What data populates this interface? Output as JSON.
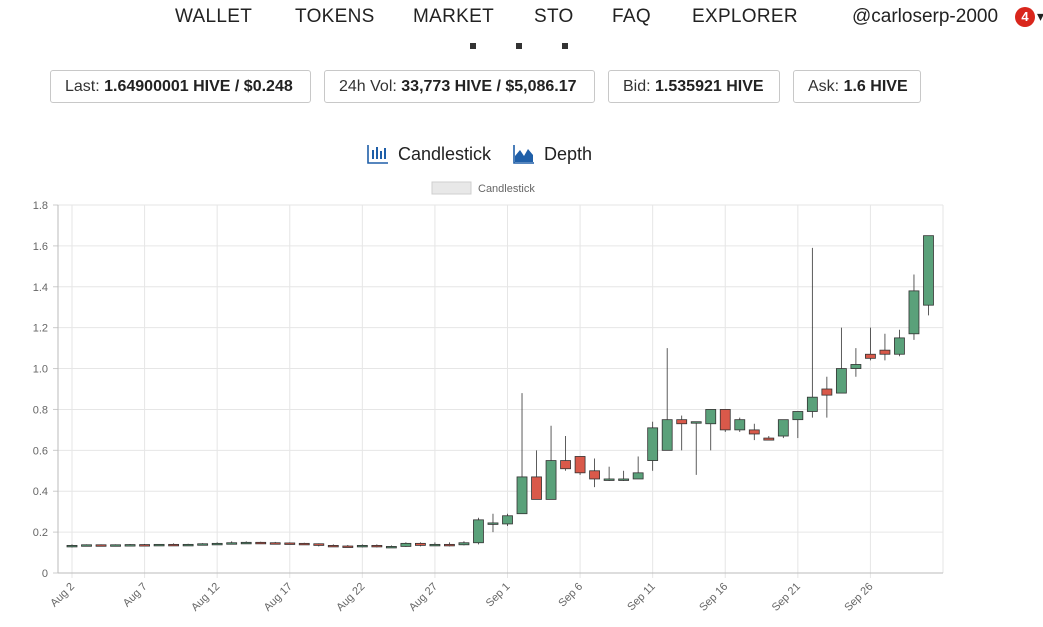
{
  "nav": {
    "items": [
      "WALLET",
      "TOKENS",
      "MARKET",
      "STO",
      "FAQ",
      "EXPLORER"
    ],
    "user": "@carloserp-2000",
    "notifications": "4"
  },
  "stats": {
    "last_label": "Last:",
    "last_value": "1.64900001 HIVE / $0.248",
    "vol_label": "24h Vol:",
    "vol_value": "33,773 HIVE / $5,086.17",
    "bid_label": "Bid:",
    "bid_value": "1.535921 HIVE",
    "ask_label": "Ask:",
    "ask_value": "1.6 HIVE"
  },
  "toggles": {
    "candlestick": "Candlestick",
    "depth": "Depth"
  },
  "colors": {
    "up": "#5aa17a",
    "down": "#d9594a",
    "grid": "#e6e6e6",
    "accent": "#1f5fa8"
  },
  "chart_data": {
    "type": "candlestick",
    "legend": "Candlestick",
    "legend_position": "top-center",
    "grid": true,
    "ylim": [
      0,
      1.8
    ],
    "yticks": [
      "0",
      "0.2",
      "0.4",
      "0.6",
      "0.8",
      "1.0",
      "1.2",
      "1.4",
      "1.6",
      "1.8"
    ],
    "xtick_labels": [
      "Aug 2",
      "Aug 7",
      "Aug 12",
      "Aug 17",
      "Aug 22",
      "Aug 27",
      "Sep 1",
      "Sep 6",
      "Sep 11",
      "Sep 16",
      "Sep 21",
      "Sep 26"
    ],
    "candles": [
      {
        "x": "Aug 2",
        "o": 0.13,
        "h": 0.14,
        "l": 0.125,
        "c": 0.135
      },
      {
        "x": "Aug 3",
        "o": 0.135,
        "h": 0.14,
        "l": 0.13,
        "c": 0.138
      },
      {
        "x": "Aug 4",
        "o": 0.138,
        "h": 0.14,
        "l": 0.133,
        "c": 0.136
      },
      {
        "x": "Aug 5",
        "o": 0.136,
        "h": 0.14,
        "l": 0.134,
        "c": 0.138
      },
      {
        "x": "Aug 6",
        "o": 0.138,
        "h": 0.142,
        "l": 0.135,
        "c": 0.139
      },
      {
        "x": "Aug 7",
        "o": 0.139,
        "h": 0.142,
        "l": 0.136,
        "c": 0.137
      },
      {
        "x": "Aug 8",
        "o": 0.137,
        "h": 0.142,
        "l": 0.135,
        "c": 0.14
      },
      {
        "x": "Aug 9",
        "o": 0.14,
        "h": 0.145,
        "l": 0.136,
        "c": 0.138
      },
      {
        "x": "Aug 10",
        "o": 0.138,
        "h": 0.143,
        "l": 0.135,
        "c": 0.14
      },
      {
        "x": "Aug 11",
        "o": 0.14,
        "h": 0.146,
        "l": 0.137,
        "c": 0.143
      },
      {
        "x": "Aug 12",
        "o": 0.143,
        "h": 0.15,
        "l": 0.14,
        "c": 0.145
      },
      {
        "x": "Aug 13",
        "o": 0.145,
        "h": 0.155,
        "l": 0.14,
        "c": 0.148
      },
      {
        "x": "Aug 14",
        "o": 0.148,
        "h": 0.155,
        "l": 0.144,
        "c": 0.15
      },
      {
        "x": "Aug 15",
        "o": 0.15,
        "h": 0.153,
        "l": 0.145,
        "c": 0.148
      },
      {
        "x": "Aug 16",
        "o": 0.148,
        "h": 0.152,
        "l": 0.145,
        "c": 0.147
      },
      {
        "x": "Aug 17",
        "o": 0.147,
        "h": 0.15,
        "l": 0.143,
        "c": 0.145
      },
      {
        "x": "Aug 18",
        "o": 0.145,
        "h": 0.148,
        "l": 0.14,
        "c": 0.143
      },
      {
        "x": "Aug 19",
        "o": 0.143,
        "h": 0.145,
        "l": 0.13,
        "c": 0.135
      },
      {
        "x": "Aug 20",
        "o": 0.135,
        "h": 0.14,
        "l": 0.128,
        "c": 0.132
      },
      {
        "x": "Aug 21",
        "o": 0.132,
        "h": 0.137,
        "l": 0.127,
        "c": 0.13
      },
      {
        "x": "Aug 22",
        "o": 0.13,
        "h": 0.14,
        "l": 0.125,
        "c": 0.135
      },
      {
        "x": "Aug 23",
        "o": 0.135,
        "h": 0.14,
        "l": 0.125,
        "c": 0.128
      },
      {
        "x": "Aug 24",
        "o": 0.128,
        "h": 0.135,
        "l": 0.124,
        "c": 0.13
      },
      {
        "x": "Aug 25",
        "o": 0.13,
        "h": 0.15,
        "l": 0.128,
        "c": 0.145
      },
      {
        "x": "Aug 26",
        "o": 0.145,
        "h": 0.15,
        "l": 0.13,
        "c": 0.135
      },
      {
        "x": "Aug 27",
        "o": 0.135,
        "h": 0.15,
        "l": 0.133,
        "c": 0.14
      },
      {
        "x": "Aug 28",
        "o": 0.14,
        "h": 0.15,
        "l": 0.13,
        "c": 0.138
      },
      {
        "x": "Aug 29",
        "o": 0.138,
        "h": 0.155,
        "l": 0.135,
        "c": 0.148
      },
      {
        "x": "Aug 30",
        "o": 0.148,
        "h": 0.27,
        "l": 0.14,
        "c": 0.26
      },
      {
        "x": "Aug 31",
        "o": 0.24,
        "h": 0.29,
        "l": 0.2,
        "c": 0.245
      },
      {
        "x": "Sep 1",
        "o": 0.24,
        "h": 0.29,
        "l": 0.23,
        "c": 0.28
      },
      {
        "x": "Sep 2",
        "o": 0.29,
        "h": 0.88,
        "l": 0.29,
        "c": 0.47
      },
      {
        "x": "Sep 3",
        "o": 0.47,
        "h": 0.6,
        "l": 0.36,
        "c": 0.36
      },
      {
        "x": "Sep 4",
        "o": 0.36,
        "h": 0.72,
        "l": 0.36,
        "c": 0.55
      },
      {
        "x": "Sep 5",
        "o": 0.55,
        "h": 0.67,
        "l": 0.5,
        "c": 0.51
      },
      {
        "x": "Sep 6",
        "o": 0.57,
        "h": 0.57,
        "l": 0.48,
        "c": 0.49
      },
      {
        "x": "Sep 7",
        "o": 0.5,
        "h": 0.56,
        "l": 0.42,
        "c": 0.46
      },
      {
        "x": "Sep 8",
        "o": 0.455,
        "h": 0.52,
        "l": 0.45,
        "c": 0.46
      },
      {
        "x": "Sep 9",
        "o": 0.455,
        "h": 0.5,
        "l": 0.45,
        "c": 0.46
      },
      {
        "x": "Sep 10",
        "o": 0.46,
        "h": 0.57,
        "l": 0.46,
        "c": 0.49
      },
      {
        "x": "Sep 11",
        "o": 0.55,
        "h": 0.74,
        "l": 0.5,
        "c": 0.71
      },
      {
        "x": "Sep 12",
        "o": 0.6,
        "h": 1.1,
        "l": 0.6,
        "c": 0.75
      },
      {
        "x": "Sep 13",
        "o": 0.75,
        "h": 0.77,
        "l": 0.6,
        "c": 0.73
      },
      {
        "x": "Sep 14",
        "o": 0.735,
        "h": 0.74,
        "l": 0.48,
        "c": 0.74
      },
      {
        "x": "Sep 15",
        "o": 0.73,
        "h": 0.8,
        "l": 0.6,
        "c": 0.8
      },
      {
        "x": "Sep 16",
        "o": 0.8,
        "h": 0.8,
        "l": 0.69,
        "c": 0.7
      },
      {
        "x": "Sep 17",
        "o": 0.7,
        "h": 0.76,
        "l": 0.69,
        "c": 0.75
      },
      {
        "x": "Sep 18",
        "o": 0.7,
        "h": 0.73,
        "l": 0.65,
        "c": 0.68
      },
      {
        "x": "Sep 19",
        "o": 0.66,
        "h": 0.67,
        "l": 0.65,
        "c": 0.65
      },
      {
        "x": "Sep 20",
        "o": 0.67,
        "h": 0.75,
        "l": 0.66,
        "c": 0.75
      },
      {
        "x": "Sep 21",
        "o": 0.75,
        "h": 0.79,
        "l": 0.66,
        "c": 0.79
      },
      {
        "x": "Sep 22",
        "o": 0.79,
        "h": 1.59,
        "l": 0.76,
        "c": 0.86
      },
      {
        "x": "Sep 23",
        "o": 0.9,
        "h": 0.96,
        "l": 0.76,
        "c": 0.87
      },
      {
        "x": "Sep 24",
        "o": 0.88,
        "h": 1.2,
        "l": 0.88,
        "c": 1.0
      },
      {
        "x": "Sep 25",
        "o": 1.0,
        "h": 1.1,
        "l": 0.96,
        "c": 1.02
      },
      {
        "x": "Sep 26",
        "o": 1.07,
        "h": 1.2,
        "l": 1.04,
        "c": 1.05
      },
      {
        "x": "Sep 27",
        "o": 1.09,
        "h": 1.17,
        "l": 1.04,
        "c": 1.07
      },
      {
        "x": "Sep 28",
        "o": 1.07,
        "h": 1.19,
        "l": 1.06,
        "c": 1.15
      },
      {
        "x": "Sep 29",
        "o": 1.17,
        "h": 1.46,
        "l": 1.14,
        "c": 1.38
      },
      {
        "x": "Sep 30",
        "o": 1.31,
        "h": 1.65,
        "l": 1.26,
        "c": 1.65
      }
    ]
  }
}
